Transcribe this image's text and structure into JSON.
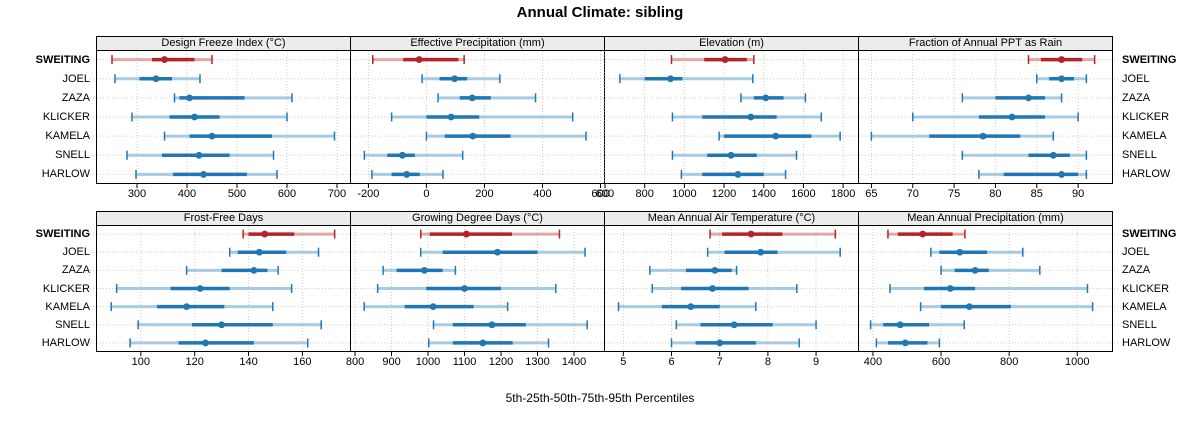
{
  "title": "Annual Climate: sibling",
  "caption": "5th-25th-50th-75th-95th Percentiles",
  "percentile_labels": [
    "5th",
    "25th",
    "50th",
    "75th",
    "95th"
  ],
  "sites": [
    {
      "name": "SWEITING",
      "highlight": true
    },
    {
      "name": "JOEL",
      "highlight": false
    },
    {
      "name": "ZAZA",
      "highlight": false
    },
    {
      "name": "KLICKER",
      "highlight": false
    },
    {
      "name": "KAMELA",
      "highlight": false
    },
    {
      "name": "SNELL",
      "highlight": false
    },
    {
      "name": "HARLOW",
      "highlight": false
    }
  ],
  "colors": {
    "highlight": "#b22427",
    "highlight_light": "#e2a6a6",
    "normal": "#2077b4",
    "normal_light": "#a6cbe3",
    "grid": "#cdcdcd",
    "strip_bg": "#ececec",
    "border": "#000000"
  },
  "chart_data": [
    {
      "type": "dotplot-percentiles",
      "title": "Design Freeze Index (°C)",
      "xlim": [
        220,
        726
      ],
      "ticks": [
        300,
        400,
        500,
        600,
        700
      ],
      "series": [
        {
          "name": "SWEITING",
          "percentiles": [
            250,
            330,
            355,
            415,
            450
          ]
        },
        {
          "name": "JOEL",
          "percentiles": [
            256,
            305,
            338,
            370,
            426
          ]
        },
        {
          "name": "ZAZA",
          "percentiles": [
            375,
            385,
            405,
            515,
            610
          ]
        },
        {
          "name": "KLICKER",
          "percentiles": [
            290,
            365,
            415,
            465,
            600
          ]
        },
        {
          "name": "KAMELA",
          "percentiles": [
            355,
            405,
            450,
            570,
            695
          ]
        },
        {
          "name": "SNELL",
          "percentiles": [
            280,
            350,
            424,
            485,
            573
          ]
        },
        {
          "name": "HARLOW",
          "percentiles": [
            298,
            372,
            433,
            520,
            580
          ]
        }
      ]
    },
    {
      "type": "dotplot-percentiles",
      "title": "Effective Precipitation (mm)",
      "xlim": [
        -260,
        612
      ],
      "ticks": [
        -200,
        0,
        200,
        400,
        600
      ],
      "series": [
        {
          "name": "SWEITING",
          "percentiles": [
            -185,
            -80,
            -25,
            110,
            130
          ]
        },
        {
          "name": "JOEL",
          "percentiles": [
            -15,
            45,
            97,
            140,
            253
          ]
        },
        {
          "name": "ZAZA",
          "percentiles": [
            40,
            115,
            158,
            222,
            376
          ]
        },
        {
          "name": "KLICKER",
          "percentiles": [
            -120,
            0,
            85,
            182,
            504
          ]
        },
        {
          "name": "KAMELA",
          "percentiles": [
            0,
            63,
            160,
            290,
            550
          ]
        },
        {
          "name": "SNELL",
          "percentiles": [
            -214,
            -135,
            -83,
            -40,
            125
          ]
        },
        {
          "name": "HARLOW",
          "percentiles": [
            -188,
            -120,
            -68,
            -23,
            57
          ]
        }
      ]
    },
    {
      "type": "dotplot-percentiles",
      "title": "Elevation (m)",
      "xlim": [
        600,
        1875
      ],
      "ticks": [
        600,
        800,
        1000,
        1200,
        1400,
        1600,
        1800
      ],
      "series": [
        {
          "name": "SWEITING",
          "percentiles": [
            935,
            1100,
            1205,
            1315,
            1350
          ]
        },
        {
          "name": "JOEL",
          "percentiles": [
            675,
            800,
            930,
            990,
            1345
          ]
        },
        {
          "name": "ZAZA",
          "percentiles": [
            1285,
            1350,
            1410,
            1500,
            1610
          ]
        },
        {
          "name": "KLICKER",
          "percentiles": [
            940,
            1090,
            1335,
            1465,
            1690
          ]
        },
        {
          "name": "KAMELA",
          "percentiles": [
            1175,
            1200,
            1460,
            1640,
            1785
          ]
        },
        {
          "name": "SNELL",
          "percentiles": [
            940,
            1115,
            1235,
            1365,
            1565
          ]
        },
        {
          "name": "HARLOW",
          "percentiles": [
            985,
            1090,
            1270,
            1400,
            1510
          ]
        }
      ]
    },
    {
      "type": "dotplot-percentiles",
      "title": "Fraction of Annual PPT as Rain",
      "xlim": [
        63.5,
        94.1
      ],
      "ticks": [
        65,
        70,
        75,
        80,
        85,
        90
      ],
      "series": [
        {
          "name": "SWEITING",
          "percentiles": [
            84,
            85.5,
            88,
            90.5,
            92
          ]
        },
        {
          "name": "JOEL",
          "percentiles": [
            85,
            86.5,
            88,
            89.5,
            91
          ]
        },
        {
          "name": "ZAZA",
          "percentiles": [
            76,
            80,
            84,
            86,
            88
          ]
        },
        {
          "name": "KLICKER",
          "percentiles": [
            70,
            78,
            82,
            86,
            90
          ]
        },
        {
          "name": "KAMELA",
          "percentiles": [
            65,
            72,
            78.5,
            83,
            87
          ]
        },
        {
          "name": "SNELL",
          "percentiles": [
            76,
            84,
            87,
            89,
            91
          ]
        },
        {
          "name": "HARLOW",
          "percentiles": [
            78,
            81,
            88,
            90,
            91
          ]
        }
      ]
    },
    {
      "type": "dotplot-percentiles",
      "title": "Frost-Free Days",
      "xlim": [
        83.7,
        177.7
      ],
      "ticks": [
        100,
        120,
        140,
        160
      ],
      "series": [
        {
          "name": "SWEITING",
          "percentiles": [
            138,
            140,
            146,
            157,
            172
          ]
        },
        {
          "name": "JOEL",
          "percentiles": [
            133,
            136,
            144,
            154,
            166
          ]
        },
        {
          "name": "ZAZA",
          "percentiles": [
            117,
            130,
            142,
            147,
            151
          ]
        },
        {
          "name": "KLICKER",
          "percentiles": [
            91,
            111,
            122,
            133,
            156
          ]
        },
        {
          "name": "KAMELA",
          "percentiles": [
            89,
            106,
            117,
            131,
            149
          ]
        },
        {
          "name": "SNELL",
          "percentiles": [
            99,
            119,
            130,
            149,
            167
          ]
        },
        {
          "name": "HARLOW",
          "percentiles": [
            96,
            114,
            124,
            142,
            162
          ]
        }
      ]
    },
    {
      "type": "dotplot-percentiles",
      "title": "Growing Degree Days (°C)",
      "xlim": [
        789,
        1482
      ],
      "ticks": [
        800,
        900,
        1000,
        1100,
        1200,
        1300,
        1400
      ],
      "series": [
        {
          "name": "SWEITING",
          "percentiles": [
            980,
            1005,
            1105,
            1230,
            1360
          ]
        },
        {
          "name": "JOEL",
          "percentiles": [
            980,
            1040,
            1190,
            1300,
            1430
          ]
        },
        {
          "name": "ZAZA",
          "percentiles": [
            877,
            914,
            990,
            1040,
            1075
          ]
        },
        {
          "name": "KLICKER",
          "percentiles": [
            862,
            995,
            1100,
            1200,
            1350
          ]
        },
        {
          "name": "KAMELA",
          "percentiles": [
            825,
            936,
            1014,
            1125,
            1218
          ]
        },
        {
          "name": "SNELL",
          "percentiles": [
            1015,
            1068,
            1175,
            1268,
            1436
          ]
        },
        {
          "name": "HARLOW",
          "percentiles": [
            1002,
            1068,
            1150,
            1232,
            1330
          ]
        }
      ]
    },
    {
      "type": "dotplot-percentiles",
      "title": "Mean Annual Air Temperature (°C)",
      "xlim": [
        4.62,
        9.87
      ],
      "ticks": [
        5,
        6,
        7,
        8,
        9
      ],
      "series": [
        {
          "name": "SWEITING",
          "percentiles": [
            6.8,
            7.05,
            7.65,
            8.3,
            9.4
          ]
        },
        {
          "name": "JOEL",
          "percentiles": [
            6.75,
            7.1,
            7.85,
            8.2,
            9.5
          ]
        },
        {
          "name": "ZAZA",
          "percentiles": [
            5.55,
            6.3,
            6.9,
            7.25,
            7.35
          ]
        },
        {
          "name": "KLICKER",
          "percentiles": [
            5.6,
            6.2,
            6.85,
            7.6,
            8.6
          ]
        },
        {
          "name": "KAMELA",
          "percentiles": [
            4.9,
            5.8,
            6.4,
            7.0,
            7.75
          ]
        },
        {
          "name": "SNELL",
          "percentiles": [
            6.1,
            6.6,
            7.3,
            8.1,
            9.0
          ]
        },
        {
          "name": "HARLOW",
          "percentiles": [
            6.0,
            6.5,
            7.0,
            7.75,
            8.65
          ]
        }
      ]
    },
    {
      "type": "dotplot-percentiles",
      "title": "Mean Annual Precipitation (mm)",
      "xlim": [
        359,
        1102
      ],
      "ticks": [
        400,
        600,
        800,
        1000
      ],
      "series": [
        {
          "name": "SWEITING",
          "percentiles": [
            444,
            473,
            546,
            634,
            670
          ]
        },
        {
          "name": "JOEL",
          "percentiles": [
            570,
            595,
            655,
            735,
            840
          ]
        },
        {
          "name": "ZAZA",
          "percentiles": [
            600,
            640,
            700,
            740,
            890
          ]
        },
        {
          "name": "KLICKER",
          "percentiles": [
            450,
            550,
            627,
            700,
            1030
          ]
        },
        {
          "name": "KAMELA",
          "percentiles": [
            540,
            600,
            683,
            805,
            1045
          ]
        },
        {
          "name": "SNELL",
          "percentiles": [
            393,
            430,
            480,
            565,
            668
          ]
        },
        {
          "name": "HARLOW",
          "percentiles": [
            410,
            444,
            495,
            560,
            595
          ]
        }
      ]
    }
  ]
}
